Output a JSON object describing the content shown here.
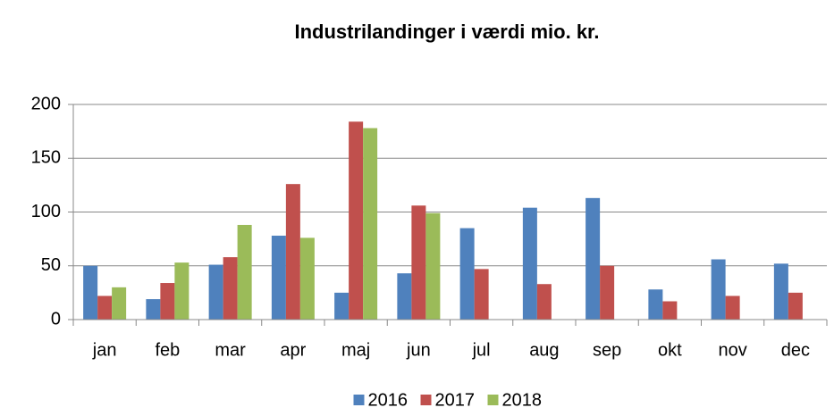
{
  "chart_data": {
    "type": "bar",
    "title": "Industrilandinger i værdi mio. kr.",
    "categories": [
      "jan",
      "feb",
      "mar",
      "apr",
      "maj",
      "jun",
      "jul",
      "aug",
      "sep",
      "okt",
      "nov",
      "dec"
    ],
    "series": [
      {
        "name": "2016",
        "color": "#4f81bd",
        "values": [
          50,
          19,
          51,
          78,
          25,
          43,
          85,
          104,
          113,
          28,
          56,
          52
        ]
      },
      {
        "name": "2017",
        "color": "#c0504d",
        "values": [
          22,
          34,
          58,
          126,
          184,
          106,
          47,
          33,
          50,
          17,
          22,
          25
        ]
      },
      {
        "name": "2018",
        "color": "#9bbb59",
        "values": [
          30,
          53,
          88,
          76,
          178,
          99,
          null,
          null,
          null,
          null,
          null,
          null
        ]
      }
    ],
    "ylim": [
      0,
      200
    ],
    "yticks": [
      0,
      50,
      100,
      150,
      200
    ],
    "grid": true,
    "legend": "bottom"
  }
}
